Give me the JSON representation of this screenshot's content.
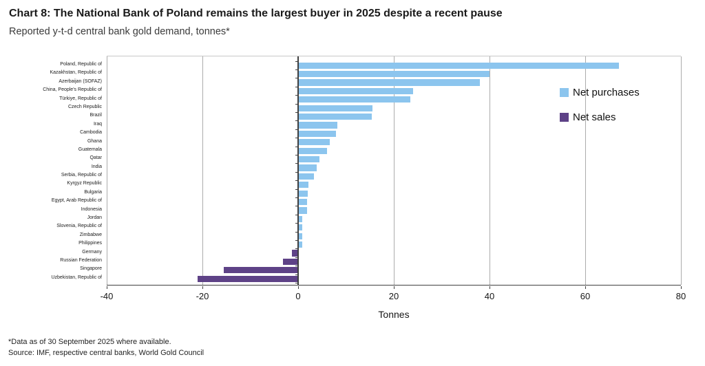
{
  "header": {
    "title": "Chart 8: The National Bank of Poland remains the largest buyer in 2025 despite a recent pause",
    "subtitle": "Reported y-t-d central bank gold demand, tonnes*"
  },
  "chart_data": {
    "type": "bar",
    "orientation": "horizontal",
    "title": "Chart 8: The National Bank of Poland remains the largest buyer in 2025 despite a recent pause",
    "subtitle": "Reported y-t-d central bank gold demand, tonnes*",
    "categories": [
      "Poland, Republic of",
      "Kazakhstan, Republic of",
      "Azerbaijan (SOFAZ)",
      "China, People's Republic of",
      "Türkiye, Republic of",
      "Czech Republic",
      "Brazil",
      "Iraq",
      "Cambodia",
      "Ghana",
      "Guatemala",
      "Qatar",
      "India",
      "Serbia, Republic of",
      "Kyrgyz Republic",
      "Bulgaria",
      "Egypt, Arab Republic of",
      "Indonesia",
      "Jordan",
      "Slovenia, Republic of",
      "Zimbabwe",
      "Philippines",
      "Germany",
      "Russian Federation",
      "Singapore",
      "Uzbekistan, Republic of"
    ],
    "values": [
      67,
      40,
      38,
      24,
      23.5,
      15.5,
      15.4,
      8.2,
      7.9,
      6.6,
      6.1,
      4.4,
      3.9,
      3.3,
      2.1,
      2.0,
      1.9,
      1.9,
      0.9,
      0.9,
      0.9,
      0.9,
      -1.3,
      -3.1,
      -15.6,
      -21
    ],
    "positive_color": "#8cc5ee",
    "negative_color": "#5e4287",
    "xlabel": "Tonnes",
    "xlim": [
      -40,
      80
    ],
    "xticks": [
      -40,
      -20,
      0,
      20,
      40,
      60,
      80
    ],
    "grid": true,
    "legend_position": "upper right",
    "legend": [
      {
        "label": "Net purchases",
        "color": "#8cc5ee"
      },
      {
        "label": "Net sales",
        "color": "#5e4287"
      }
    ]
  },
  "footnotes": {
    "line1": "*Data as of 30 September 2025 where available.",
    "line2": "Source: IMF, respective central banks, World Gold Council"
  }
}
